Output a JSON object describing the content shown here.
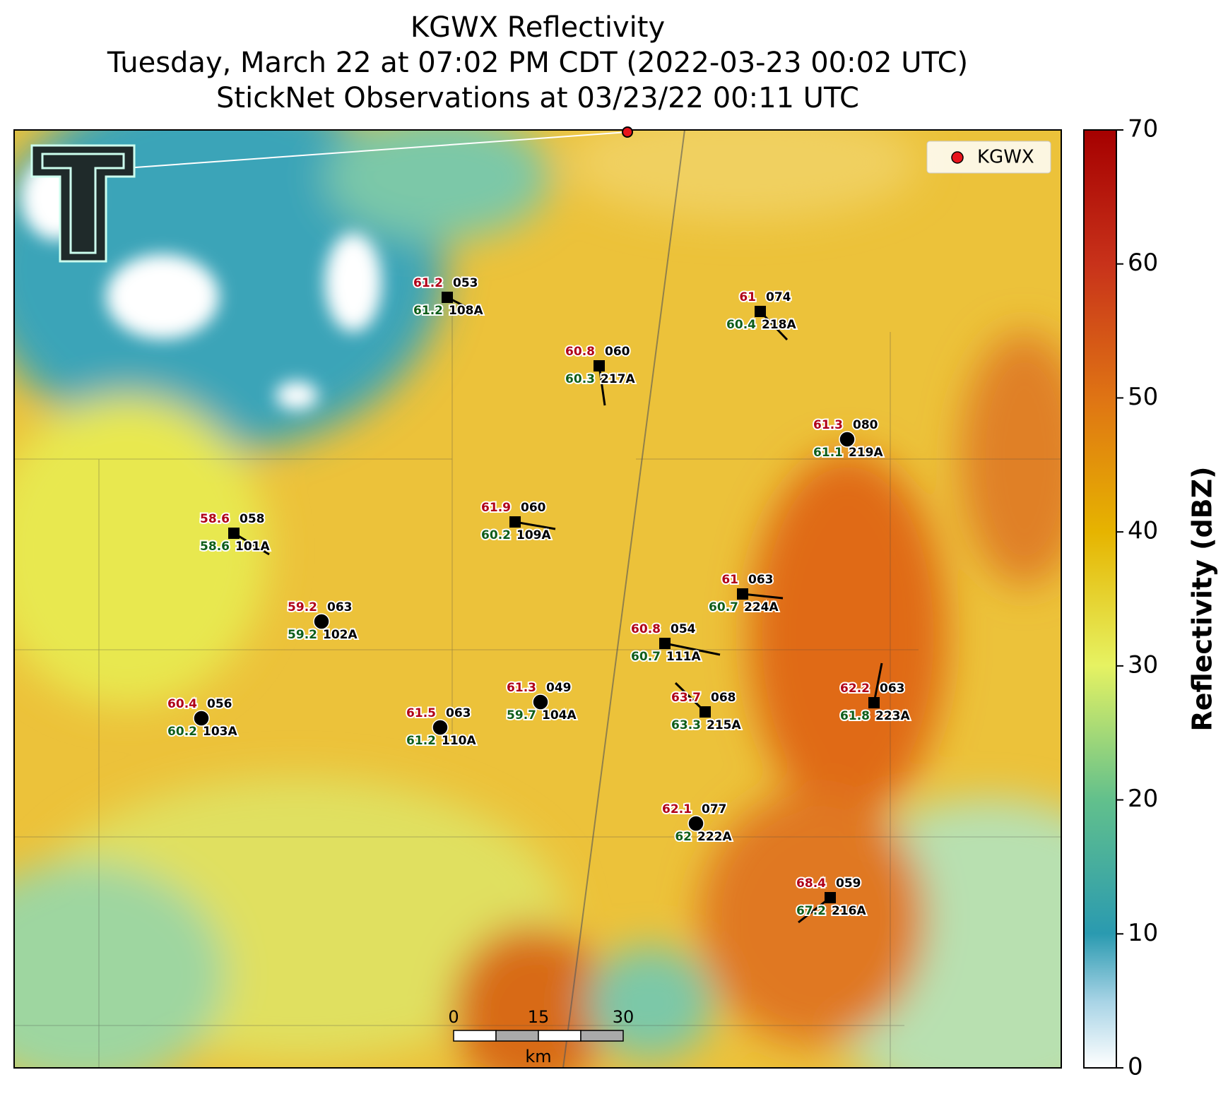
{
  "header": {
    "title": "KGWX Reflectivity",
    "subtitle": "Tuesday, March 22 at 07:02 PM CDT (2022-03-23 00:02 UTC)",
    "observations": "StickNet Observations at 03/23/22 00:11 UTC"
  },
  "legend": {
    "label": "KGWX",
    "color": "#e8141c"
  },
  "colorbar": {
    "label": "Reflectivity (dBZ)",
    "lim": [
      0,
      70
    ],
    "ticks": [
      0,
      10,
      20,
      30,
      40,
      50,
      60,
      70
    ]
  },
  "scale_bar": {
    "ticks": [
      0,
      15,
      30
    ],
    "unit": "km"
  },
  "stations": [
    {
      "id": "108A",
      "temp": 61.2,
      "dew": 61.2,
      "code": "053",
      "marker": "square"
    },
    {
      "id": "217A",
      "temp": 60.8,
      "dew": 60.3,
      "code": "060",
      "marker": "square"
    },
    {
      "id": "218A",
      "temp": 61.0,
      "dew": 60.4,
      "code": "074",
      "marker": "square"
    },
    {
      "id": "219A",
      "temp": 61.3,
      "dew": 61.1,
      "code": "080",
      "marker": "circle"
    },
    {
      "id": "109A",
      "temp": 61.9,
      "dew": 60.2,
      "code": "060",
      "marker": "square"
    },
    {
      "id": "101A",
      "temp": 58.6,
      "dew": 58.6,
      "code": "058",
      "marker": "square"
    },
    {
      "id": "224A",
      "temp": 61.0,
      "dew": 60.7,
      "code": "063",
      "marker": "square"
    },
    {
      "id": "102A",
      "temp": 59.2,
      "dew": 59.2,
      "code": "063",
      "marker": "circle"
    },
    {
      "id": "111A",
      "temp": 60.8,
      "dew": 60.7,
      "code": "054",
      "marker": "square"
    },
    {
      "id": "215A",
      "temp": 63.7,
      "dew": 63.3,
      "code": "068",
      "marker": "square"
    },
    {
      "id": "223A",
      "temp": 62.2,
      "dew": 61.8,
      "code": "063",
      "marker": "square"
    },
    {
      "id": "104A",
      "temp": 61.3,
      "dew": 59.7,
      "code": "049",
      "marker": "circle"
    },
    {
      "id": "110A",
      "temp": 61.5,
      "dew": 61.2,
      "code": "063",
      "marker": "circle"
    },
    {
      "id": "103A",
      "temp": 60.4,
      "dew": 60.2,
      "code": "056",
      "marker": "circle"
    },
    {
      "id": "222A",
      "temp": 62.1,
      "dew": 62.0,
      "code": "077",
      "marker": "circle"
    },
    {
      "id": "216A",
      "temp": 68.4,
      "dew": 67.2,
      "code": "059",
      "marker": "square"
    }
  ]
}
